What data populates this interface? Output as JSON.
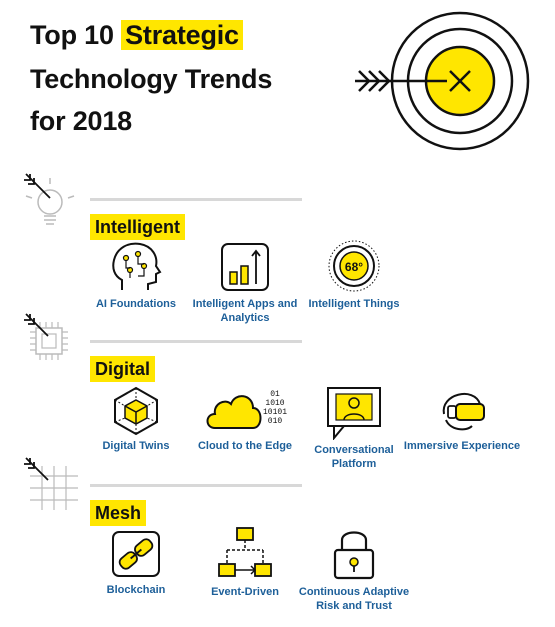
{
  "title": {
    "prefix": "Top 10",
    "highlight": "Strategic",
    "line2": "Technology Trends",
    "line3": "for 2018"
  },
  "colors": {
    "accent": "#ffe600",
    "label_blue": "#1d5f99",
    "rule_gray": "#d8d8d8"
  },
  "sections": {
    "intelligent": {
      "label": "Intelligent",
      "items": [
        {
          "label": "AI Foundations",
          "icon": "ai-head-icon"
        },
        {
          "label": "Intelligent Apps and Analytics",
          "icon": "bar-chart-icon"
        },
        {
          "label": "Intelligent Things",
          "icon": "thermostat-icon",
          "readout": "68°"
        }
      ]
    },
    "digital": {
      "label": "Digital",
      "items": [
        {
          "label": "Digital Twins",
          "icon": "cube-icon"
        },
        {
          "label": "Cloud to the Edge",
          "icon": "cloud-icon",
          "binary": [
            "01",
            "1010",
            "10101",
            "010"
          ]
        },
        {
          "label": "Conversational Platform",
          "icon": "monitor-person-icon"
        },
        {
          "label": "Immersive Experience",
          "icon": "vr-headset-icon"
        }
      ]
    },
    "mesh": {
      "label": "Mesh",
      "items": [
        {
          "label": "Blockchain",
          "icon": "chain-link-icon"
        },
        {
          "label": "Event-Driven",
          "icon": "event-flow-icon"
        },
        {
          "label": "Continuous Adaptive Risk and Trust",
          "icon": "padlock-icon"
        }
      ]
    }
  }
}
